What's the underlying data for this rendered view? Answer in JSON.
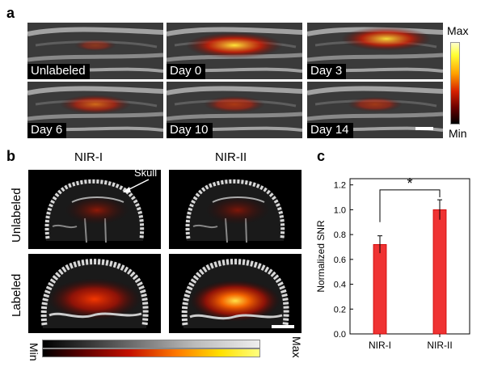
{
  "panels": {
    "a": {
      "letter": "a",
      "tiles": [
        {
          "label": "Unlabeled",
          "signal": 0.15
        },
        {
          "label": "Day 0",
          "signal": 1.0
        },
        {
          "label": "Day 3",
          "signal": 0.9
        },
        {
          "label": "Day 6",
          "signal": 0.6
        },
        {
          "label": "Day 10",
          "signal": 0.45
        },
        {
          "label": "Day 14",
          "signal": 0.35
        }
      ],
      "colorbar": {
        "max_label": "Max",
        "min_label": "Min"
      }
    },
    "b": {
      "letter": "b",
      "columns": [
        "NIR-I",
        "NIR-II"
      ],
      "rows": [
        "Unlabeled",
        "Labeled"
      ],
      "annotation": "Skull",
      "colorbar": {
        "min_label": "Min",
        "max_label": "Max"
      }
    },
    "c": {
      "letter": "c",
      "significance": "*"
    }
  },
  "chart_data": {
    "type": "bar",
    "categories": [
      "NIR-I",
      "NIR-II"
    ],
    "values": [
      0.72,
      1.0
    ],
    "errors": [
      0.07,
      0.08
    ],
    "ylabel": "Normalized SNR",
    "xlabel": "",
    "ylim": [
      0.0,
      1.25
    ],
    "yticks": [
      "0.0",
      "0.2",
      "0.4",
      "0.6",
      "0.8",
      "1.0",
      "1.2"
    ],
    "bar_color": "#ef3333",
    "grid": false,
    "significance_marker": "*"
  }
}
